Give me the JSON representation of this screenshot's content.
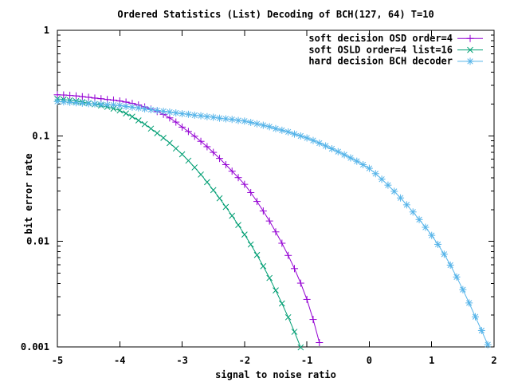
{
  "title": "Ordered Statistics (List) Decoding of BCH(127, 64) T=10",
  "colors": {
    "background": "#ffffff",
    "axis": "#000000",
    "series1": "#9400d3",
    "series2": "#009e73",
    "series3": "#56b4e9"
  },
  "chart_data": {
    "type": "line",
    "title": "Ordered Statistics (List) Decoding of BCH(127, 64) T=10",
    "xlabel": "signal to noise ratio",
    "ylabel": "bit error rate",
    "xlim": [
      -5,
      2
    ],
    "ylim": [
      0.001,
      1
    ],
    "yscale": "log",
    "grid": false,
    "legend_position": "top-right-inside-no-box",
    "xticks": [
      "-5",
      "-4",
      "-3",
      "-2",
      "-1",
      "0",
      "1",
      "2"
    ],
    "xtick_values": [
      -5,
      -4,
      -3,
      -2,
      -1,
      0,
      1,
      2
    ],
    "ytick_labels": [
      "1",
      "0.1",
      "0.01",
      "0.001"
    ],
    "ytick_values": [
      1,
      0.1,
      0.01,
      0.001
    ],
    "series": [
      {
        "name": "soft decision OSD order=4",
        "color": "#9400d3",
        "marker": "plus",
        "x_start": -5.0,
        "x_step": 0.1,
        "ber": [
          0.245,
          0.244,
          0.242,
          0.239,
          0.235,
          0.232,
          0.228,
          0.225,
          0.221,
          0.218,
          0.214,
          0.209,
          0.203,
          0.196,
          0.188,
          0.179,
          0.17,
          0.16,
          0.148,
          0.135,
          0.121,
          0.11,
          0.0991,
          0.0887,
          0.0789,
          0.0697,
          0.0611,
          0.0533,
          0.0463,
          0.0402,
          0.0347,
          0.029,
          0.0239,
          0.0194,
          0.0156,
          0.0123,
          0.0096,
          0.00736,
          0.00552,
          0.00402,
          0.00282,
          0.00182,
          0.0011
        ]
      },
      {
        "name": "soft OSLD order=4 list=16",
        "color": "#009e73",
        "marker": "cross",
        "x_start": -5.0,
        "x_step": 0.1,
        "ber": [
          0.224,
          0.221,
          0.217,
          0.213,
          0.209,
          0.204,
          0.199,
          0.194,
          0.188,
          0.181,
          0.174,
          0.163,
          0.152,
          0.14,
          0.129,
          0.117,
          0.106,
          0.0957,
          0.0855,
          0.0759,
          0.0668,
          0.0582,
          0.0502,
          0.043,
          0.0364,
          0.0306,
          0.0256,
          0.0212,
          0.0175,
          0.0143,
          0.0116,
          0.00936,
          0.00743,
          0.00582,
          0.0045,
          0.00343,
          0.00258,
          0.00191,
          0.00139,
          0.00099
        ]
      },
      {
        "name": "hard decision BCH decoder",
        "color": "#56b4e9",
        "marker": "asterisk",
        "x_start": -5.0,
        "x_step": 0.1,
        "ber": [
          0.212,
          0.21,
          0.208,
          0.206,
          0.204,
          0.202,
          0.201,
          0.199,
          0.197,
          0.196,
          0.194,
          0.19,
          0.187,
          0.184,
          0.18,
          0.177,
          0.174,
          0.171,
          0.168,
          0.165,
          0.162,
          0.16,
          0.157,
          0.155,
          0.152,
          0.15,
          0.147,
          0.145,
          0.143,
          0.14,
          0.138,
          0.134,
          0.13,
          0.126,
          0.122,
          0.117,
          0.113,
          0.109,
          0.104,
          0.0998,
          0.0955,
          0.0904,
          0.0853,
          0.0803,
          0.0755,
          0.0708,
          0.0662,
          0.0618,
          0.0575,
          0.0533,
          0.0492,
          0.0438,
          0.0388,
          0.0341,
          0.0298,
          0.0258,
          0.0222,
          0.019,
          0.0161,
          0.0136,
          0.0114,
          0.00937,
          0.00755,
          0.00596,
          0.0046,
          0.00349,
          0.00261,
          0.00193,
          0.00143,
          0.00105
        ]
      }
    ]
  }
}
